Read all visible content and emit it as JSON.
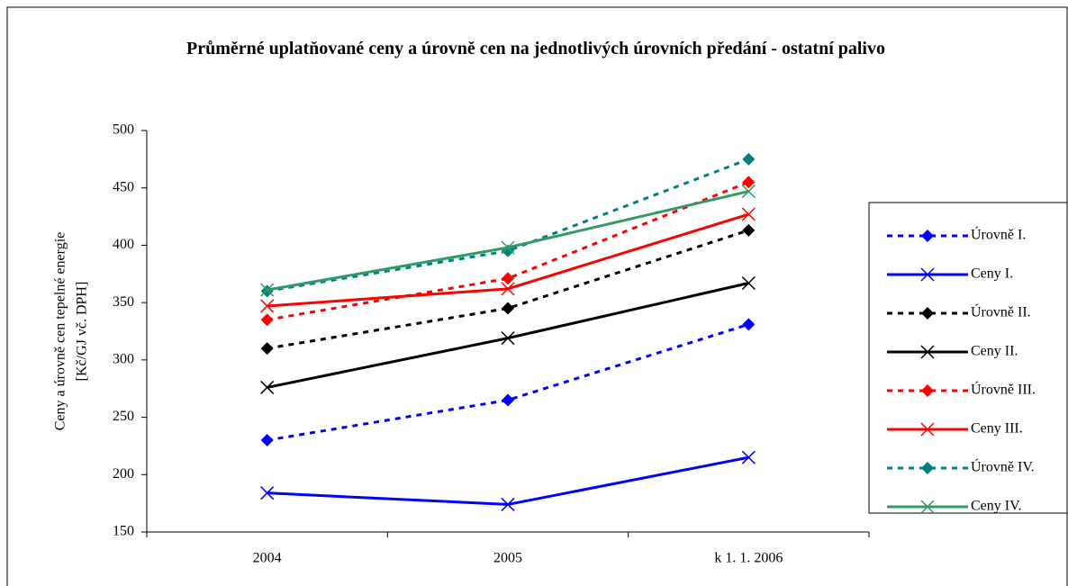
{
  "chart_data": {
    "type": "line",
    "title": "Průměrné uplatňované ceny a úrovně cen na jednotlivých úrovních předání - ostatní palivo",
    "ylabel": [
      "Ceny a úrovně cen tepelné energie",
      "[Kč/GJ vč. DPH]"
    ],
    "categories": [
      "2004",
      "2005",
      "k 1. 1. 2006"
    ],
    "ylim": [
      150,
      500
    ],
    "yticks": [
      150,
      200,
      250,
      300,
      350,
      400,
      450,
      500
    ],
    "grid": false,
    "legend": "right",
    "series": [
      {
        "name": "Úrovně I.",
        "color": "#0000ff",
        "line_style": "dashed",
        "marker": "diamond",
        "values": [
          230,
          265,
          331
        ]
      },
      {
        "name": "Ceny I.",
        "color": "#0000ff",
        "line_style": "solid",
        "marker": "x",
        "values": [
          184,
          174,
          215
        ]
      },
      {
        "name": "Úrovně II.",
        "color": "#000000",
        "line_style": "dashed",
        "marker": "diamond",
        "values": [
          310,
          345,
          413
        ]
      },
      {
        "name": "Ceny II.",
        "color": "#000000",
        "line_style": "solid",
        "marker": "x",
        "values": [
          276,
          319,
          367
        ]
      },
      {
        "name": "Úrovně III.",
        "color": "#ff0000",
        "line_style": "dashed",
        "marker": "diamond",
        "values": [
          335,
          371,
          455
        ]
      },
      {
        "name": "Ceny III.",
        "color": "#ff0000",
        "line_style": "solid",
        "marker": "x",
        "values": [
          347,
          362,
          427
        ]
      },
      {
        "name": "Úrovně IV.",
        "color": "#008080",
        "line_style": "dashed",
        "marker": "diamond",
        "values": [
          360,
          395,
          475
        ]
      },
      {
        "name": "Ceny IV.",
        "color": "#339966",
        "line_style": "solid",
        "marker": "x",
        "values": [
          361,
          398,
          447
        ]
      }
    ]
  }
}
